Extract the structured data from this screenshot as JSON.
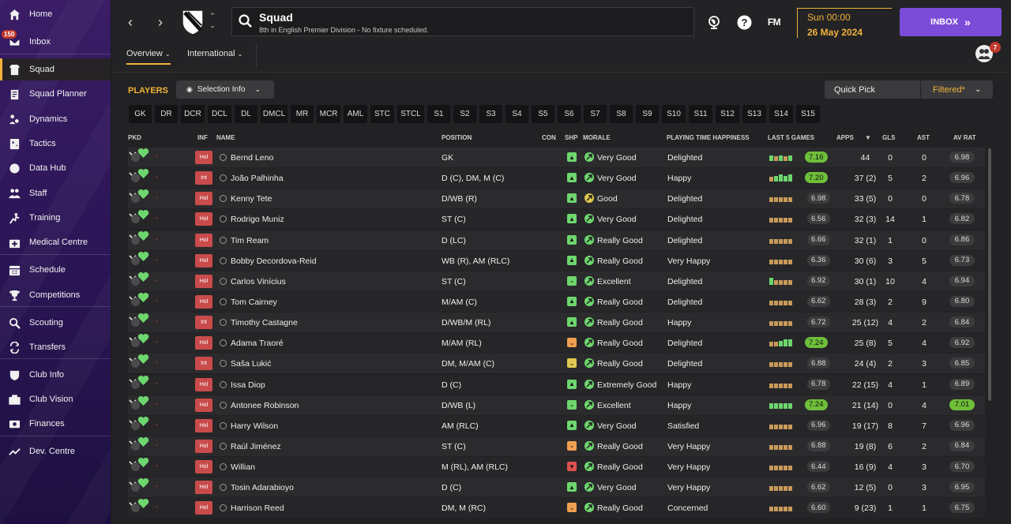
{
  "sidebar": {
    "items": [
      {
        "label": "Home",
        "icon": "home-icon"
      },
      {
        "label": "Inbox",
        "icon": "inbox-icon",
        "badge": "150"
      },
      {
        "label": "Squad",
        "icon": "squad-icon",
        "active": true
      },
      {
        "label": "Squad Planner",
        "icon": "clipboard-icon"
      },
      {
        "label": "Dynamics",
        "icon": "dynamics-icon"
      },
      {
        "label": "Tactics",
        "icon": "tactics-icon"
      },
      {
        "label": "Data Hub",
        "icon": "data-hub-icon"
      },
      {
        "label": "Staff",
        "icon": "staff-icon"
      },
      {
        "label": "Training",
        "icon": "training-icon"
      },
      {
        "label": "Medical Centre",
        "icon": "medical-icon"
      },
      {
        "label": "Schedule",
        "icon": "calendar-icon"
      },
      {
        "label": "Competitions",
        "icon": "trophy-icon"
      },
      {
        "label": "Scouting",
        "icon": "search-icon"
      },
      {
        "label": "Transfers",
        "icon": "transfer-icon"
      },
      {
        "label": "Club Info",
        "icon": "shield-icon"
      },
      {
        "label": "Club Vision",
        "icon": "briefcase-icon"
      },
      {
        "label": "Finances",
        "icon": "money-icon"
      },
      {
        "label": "Dev. Centre",
        "icon": "chart-icon"
      }
    ]
  },
  "header": {
    "title": "Squad",
    "subtitle": "8th in English Premier Division - No fixture scheduled.",
    "fm_logo": "FM",
    "date_day": "Sun 00:00",
    "date_full": "26 May 2024",
    "inbox_label": "INBOX",
    "inbox_chevron": "»",
    "avatar_badge": "7",
    "tabs": [
      "Overview",
      "International"
    ]
  },
  "toolbar": {
    "players_label": "PLAYERS",
    "selection_info": "Selection Info",
    "quick_pick": "Quick Pick",
    "filtered": "Filtered*"
  },
  "positions": [
    "GK",
    "DR",
    "DCR",
    "DCL",
    "DL",
    "DMCL",
    "MR",
    "MCR",
    "AML",
    "STC",
    "STCL",
    "S1",
    "S2",
    "S3",
    "S4",
    "S5",
    "S6",
    "S7",
    "S8",
    "S9",
    "S10",
    "S11",
    "S12",
    "S13",
    "S14",
    "S15"
  ],
  "columns": {
    "pkd": "PKD",
    "inf": "INF",
    "name": "NAME",
    "position": "POSITION",
    "con": "CON",
    "shp": "SHP",
    "morale": "MORALE",
    "happiness": "PLAYING TIME HAPPINESS",
    "last5": "LAST 5 GAMES",
    "apps": "APPS",
    "gls": "GLS",
    "ast": "AST",
    "avrat": "AV RAT"
  },
  "colors": {
    "accent": "#f1b13a",
    "brand": "#7b4cd8",
    "inf_badge": "#c94b4b",
    "good": "#6ed66e",
    "warn": "#f0a050",
    "bad": "#e05050"
  },
  "players": [
    {
      "inf": "Hol",
      "name": "Bernd Leno",
      "pos": "GK",
      "shp": "up",
      "morale": "Very Good",
      "happiness": "Delighted",
      "last5": [
        3,
        2,
        3,
        2,
        3
      ],
      "rating": "7.16",
      "apps": "44",
      "gls": "0",
      "ast": "0",
      "avrat": "6.98"
    },
    {
      "inf": "Int",
      "name": "João Palhinha",
      "pos": "D (C), DM, M (C)",
      "shp": "up",
      "morale": "Very Good",
      "happiness": "Happy",
      "last5": [
        2,
        3,
        4,
        3,
        4
      ],
      "rating": "7.20",
      "apps": "37 (2)",
      "gls": "5",
      "ast": "2",
      "avrat": "6.96"
    },
    {
      "inf": "Hol",
      "name": "Kenny Tete",
      "pos": "D/WB (R)",
      "shp": "up",
      "morale": "Good",
      "happiness": "Delighted",
      "last5": [
        2,
        2,
        2,
        2,
        2
      ],
      "rating": "6.98",
      "apps": "33 (5)",
      "gls": "0",
      "ast": "0",
      "avrat": "6.78"
    },
    {
      "inf": "Hol",
      "name": "Rodrigo Muniz",
      "pos": "ST (C)",
      "shp": "up",
      "morale": "Very Good",
      "happiness": "Delighted",
      "last5": [
        2,
        2,
        2,
        2,
        2
      ],
      "rating": "6.56",
      "apps": "32 (3)",
      "gls": "14",
      "ast": "1",
      "avrat": "6.82"
    },
    {
      "inf": "Hol",
      "name": "Tim Ream",
      "pos": "D (LC)",
      "shp": "up",
      "morale": "Really Good",
      "happiness": "Delighted",
      "last5": [
        2,
        2,
        2,
        2,
        2
      ],
      "rating": "6.66",
      "apps": "32 (1)",
      "gls": "1",
      "ast": "0",
      "avrat": "6.86"
    },
    {
      "inf": "Hol",
      "name": "Bobby Decordova-Reid",
      "pos": "WB (R), AM (RLC)",
      "shp": "up",
      "morale": "Really Good",
      "happiness": "Very Happy",
      "last5": [
        2,
        2,
        2,
        2,
        2
      ],
      "rating": "6.36",
      "apps": "30 (6)",
      "gls": "3",
      "ast": "5",
      "avrat": "6.73"
    },
    {
      "inf": "Hol",
      "name": "Carlos Vinícius",
      "pos": "ST (C)",
      "shp": "flat",
      "morale": "Excellent",
      "happiness": "Delighted",
      "last5": [
        4,
        2,
        2,
        2,
        2
      ],
      "rating": "6.92",
      "apps": "30 (1)",
      "gls": "10",
      "ast": "4",
      "avrat": "6.94"
    },
    {
      "inf": "Hol",
      "name": "Tom Cairney",
      "pos": "M/AM (C)",
      "shp": "up",
      "morale": "Really Good",
      "happiness": "Delighted",
      "last5": [
        2,
        2,
        2,
        2,
        2
      ],
      "rating": "6.62",
      "apps": "28 (3)",
      "gls": "2",
      "ast": "9",
      "avrat": "6.80"
    },
    {
      "inf": "Int",
      "name": "Timothy Castagne",
      "pos": "D/WB/M (RL)",
      "shp": "up",
      "morale": "Really Good",
      "happiness": "Happy",
      "last5": [
        2,
        2,
        2,
        2,
        2
      ],
      "rating": "6.72",
      "apps": "25 (12)",
      "gls": "4",
      "ast": "2",
      "avrat": "6.84"
    },
    {
      "inf": "Hol",
      "name": "Adama Traoré",
      "pos": "M/AM (RL)",
      "shp": "warn",
      "morale": "Really Good",
      "happiness": "Delighted",
      "last5": [
        2,
        2,
        3,
        4,
        4
      ],
      "rating": "7.24",
      "apps": "25 (8)",
      "gls": "5",
      "ast": "4",
      "avrat": "6.92"
    },
    {
      "inf": "Int",
      "name": "Saša Lukić",
      "pos": "DM, M/AM (C)",
      "shp": "meh",
      "morale": "Really Good",
      "happiness": "Delighted",
      "last5": [
        2,
        2,
        2,
        2,
        2
      ],
      "rating": "6.88",
      "apps": "24 (4)",
      "gls": "2",
      "ast": "3",
      "avrat": "6.85"
    },
    {
      "inf": "Hol",
      "name": "Issa Diop",
      "pos": "D (C)",
      "shp": "up",
      "morale": "Extremely Good",
      "happiness": "Happy",
      "last5": [
        2,
        2,
        2,
        2,
        2
      ],
      "rating": "6.78",
      "apps": "22 (15)",
      "gls": "4",
      "ast": "1",
      "avrat": "6.89"
    },
    {
      "inf": "Hol",
      "name": "Antonee Robinson",
      "pos": "D/WB (L)",
      "shp": "flat",
      "morale": "Excellent",
      "happiness": "Happy",
      "last5": [
        3,
        3,
        3,
        3,
        3
      ],
      "rating": "7.24",
      "apps": "21 (14)",
      "gls": "0",
      "ast": "4",
      "avrat": "7.01"
    },
    {
      "inf": "Hol",
      "name": "Harry Wilson",
      "pos": "AM (RLC)",
      "shp": "up",
      "morale": "Very Good",
      "happiness": "Satisfied",
      "last5": [
        2,
        2,
        2,
        2,
        2
      ],
      "rating": "6.96",
      "apps": "19 (17)",
      "gls": "8",
      "ast": "7",
      "avrat": "6.96"
    },
    {
      "inf": "Hol",
      "name": "Raúl Jiménez",
      "pos": "ST (C)",
      "shp": "warn",
      "morale": "Really Good",
      "happiness": "Very Happy",
      "last5": [
        2,
        2,
        2,
        2,
        2
      ],
      "rating": "6.88",
      "apps": "19 (8)",
      "gls": "6",
      "ast": "2",
      "avrat": "6.84"
    },
    {
      "inf": "Hol",
      "name": "Willian",
      "pos": "M (RL), AM (RLC)",
      "shp": "bad",
      "morale": "Really Good",
      "happiness": "Very Happy",
      "last5": [
        2,
        2,
        2,
        2,
        2
      ],
      "rating": "6.44",
      "apps": "16 (9)",
      "gls": "4",
      "ast": "3",
      "avrat": "6.70"
    },
    {
      "inf": "Hol",
      "name": "Tosin Adarabioyo",
      "pos": "D (C)",
      "shp": "up",
      "morale": "Very Good",
      "happiness": "Very Happy",
      "last5": [
        2,
        2,
        2,
        2,
        2
      ],
      "rating": "6.62",
      "apps": "12 (5)",
      "gls": "0",
      "ast": "3",
      "avrat": "6.95"
    },
    {
      "inf": "Hol",
      "name": "Harrison Reed",
      "pos": "DM, M (RC)",
      "shp": "warn",
      "morale": "Really Good",
      "happiness": "Concerned",
      "last5": [
        2,
        2,
        2,
        2,
        2
      ],
      "rating": "6.60",
      "apps": "9 (23)",
      "gls": "1",
      "ast": "1",
      "avrat": "6.75"
    }
  ]
}
